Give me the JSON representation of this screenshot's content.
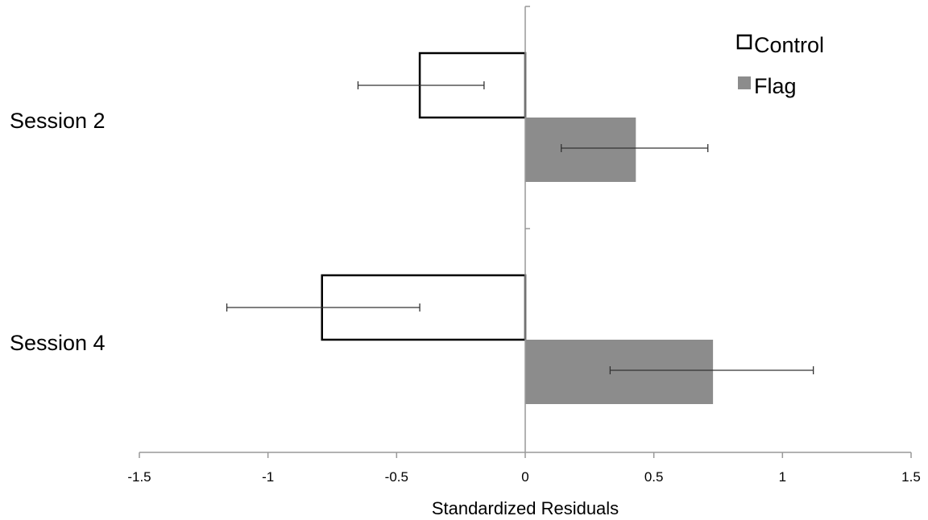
{
  "chart_data": {
    "type": "bar",
    "orientation": "horizontal",
    "categories": [
      "Session 2",
      "Session 4"
    ],
    "series": [
      {
        "name": "Control",
        "values": [
          -0.41,
          -0.79
        ],
        "error_low": [
          -0.65,
          -1.16
        ],
        "error_high": [
          -0.16,
          -0.41
        ],
        "fill": "#ffffff",
        "stroke": "#000000"
      },
      {
        "name": "Flag",
        "values": [
          0.43,
          0.73
        ],
        "error_low": [
          0.14,
          0.33
        ],
        "error_high": [
          0.71,
          1.12
        ],
        "fill": "#8c8c8c",
        "stroke": "#8c8c8c"
      }
    ],
    "xlabel": "Standardized Residuals",
    "xlim": [
      -1.5,
      1.5
    ],
    "xticks": [
      "-1.5",
      "-1",
      "-0.5",
      "0",
      "0.5",
      "1",
      "1.5"
    ],
    "xtick_values": [
      -1.5,
      -1,
      -0.5,
      0,
      0.5,
      1,
      1.5
    ],
    "grid": false,
    "legend_position": "top-right",
    "colors": {
      "axis": "#999999",
      "error_bar": "#333333"
    }
  }
}
